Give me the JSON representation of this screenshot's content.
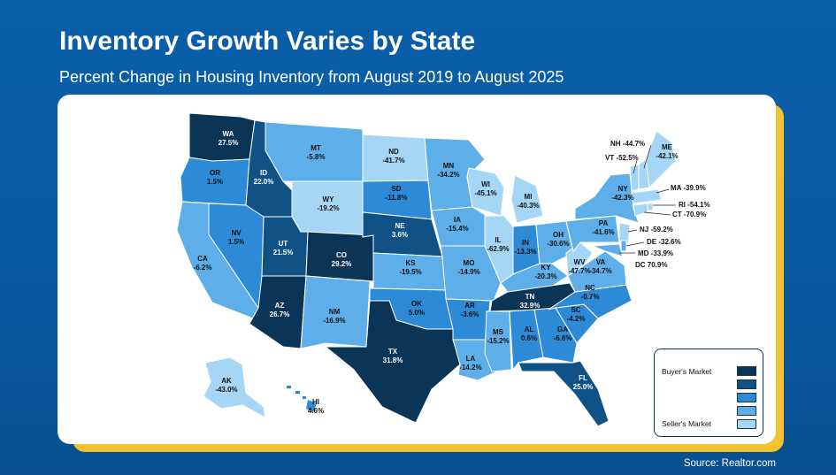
{
  "title": "Inventory Growth Varies by State",
  "subtitle": "Percent Change in Housing Inventory from August 2019 to August 2025",
  "source": "Source: Realtor.com",
  "legend": {
    "top_label": "Buyer's Market",
    "bottom_label": "Seller's Market",
    "colors": [
      "#0b3556",
      "#105286",
      "#2d8ad6",
      "#5eaee9",
      "#a6d6f6"
    ]
  },
  "states": {
    "WA": {
      "name": "WA",
      "value": "27.5%"
    },
    "OR": {
      "name": "OR",
      "value": "1.5%"
    },
    "CA": {
      "name": "CA",
      "value": "-6.2%"
    },
    "ID": {
      "name": "ID",
      "value": "22.0%"
    },
    "NV": {
      "name": "NV",
      "value": "1.5%"
    },
    "MT": {
      "name": "MT",
      "value": "-5.8%"
    },
    "WY": {
      "name": "WY",
      "value": "-19.2%"
    },
    "UT": {
      "name": "UT",
      "value": "21.5%"
    },
    "CO": {
      "name": "CO",
      "value": "29.2%"
    },
    "AZ": {
      "name": "AZ",
      "value": "26.7%"
    },
    "NM": {
      "name": "NM",
      "value": "-16.9%"
    },
    "ND": {
      "name": "ND",
      "value": "-41.7%"
    },
    "SD": {
      "name": "SD",
      "value": "-11.8%"
    },
    "NE": {
      "name": "NE",
      "value": "3.6%"
    },
    "KS": {
      "name": "KS",
      "value": "-19.5%"
    },
    "OK": {
      "name": "OK",
      "value": "5.0%"
    },
    "TX": {
      "name": "TX",
      "value": "31.8%"
    },
    "MN": {
      "name": "MN",
      "value": "-34.2%"
    },
    "IA": {
      "name": "IA",
      "value": "-15.4%"
    },
    "MO": {
      "name": "MO",
      "value": "-14.9%"
    },
    "AR": {
      "name": "AR",
      "value": "-3.6%"
    },
    "LA": {
      "name": "LA",
      "value": "-14.2%"
    },
    "WI": {
      "name": "WI",
      "value": "-45.1%"
    },
    "IL": {
      "name": "IL",
      "value": "-62.9%"
    },
    "MI": {
      "name": "MI",
      "value": "-40.3%"
    },
    "IN": {
      "name": "IN",
      "value": "-13.3%"
    },
    "OH": {
      "name": "OH",
      "value": "-30.6%"
    },
    "KY": {
      "name": "KY",
      "value": "-20.3%"
    },
    "TN": {
      "name": "TN",
      "value": "32.9%"
    },
    "MS": {
      "name": "MS",
      "value": "-15.2%"
    },
    "AL": {
      "name": "AL",
      "value": "0.6%"
    },
    "GA": {
      "name": "GA",
      "value": "-6.6%"
    },
    "FL": {
      "name": "FL",
      "value": "25.0%"
    },
    "SC": {
      "name": "SC",
      "value": "-4.2%"
    },
    "NC": {
      "name": "NC",
      "value": "-0.7%"
    },
    "VA": {
      "name": "VA",
      "value": "-34.7%"
    },
    "WV": {
      "name": "WV",
      "value": "-47.7%"
    },
    "PA": {
      "name": "PA",
      "value": "-41.6%"
    },
    "NY": {
      "name": "NY",
      "value": "-42.3%"
    },
    "ME": {
      "name": "ME",
      "value": "-42.1%"
    },
    "AK": {
      "name": "AK",
      "value": "-43.0%"
    },
    "HI": {
      "name": "HI",
      "value": "4.6%"
    }
  },
  "callouts": [
    {
      "label": "NH -44.7%"
    },
    {
      "label": "VT -52.5%"
    },
    {
      "label": "MA -39.9%"
    },
    {
      "label": "RI -54.1%"
    },
    {
      "label": "CT -70.9%"
    },
    {
      "label": "NJ -59.2%"
    },
    {
      "label": "DE -32.6%"
    },
    {
      "label": "MD -33.9%"
    },
    {
      "label": "DC 70.9%"
    }
  ]
}
